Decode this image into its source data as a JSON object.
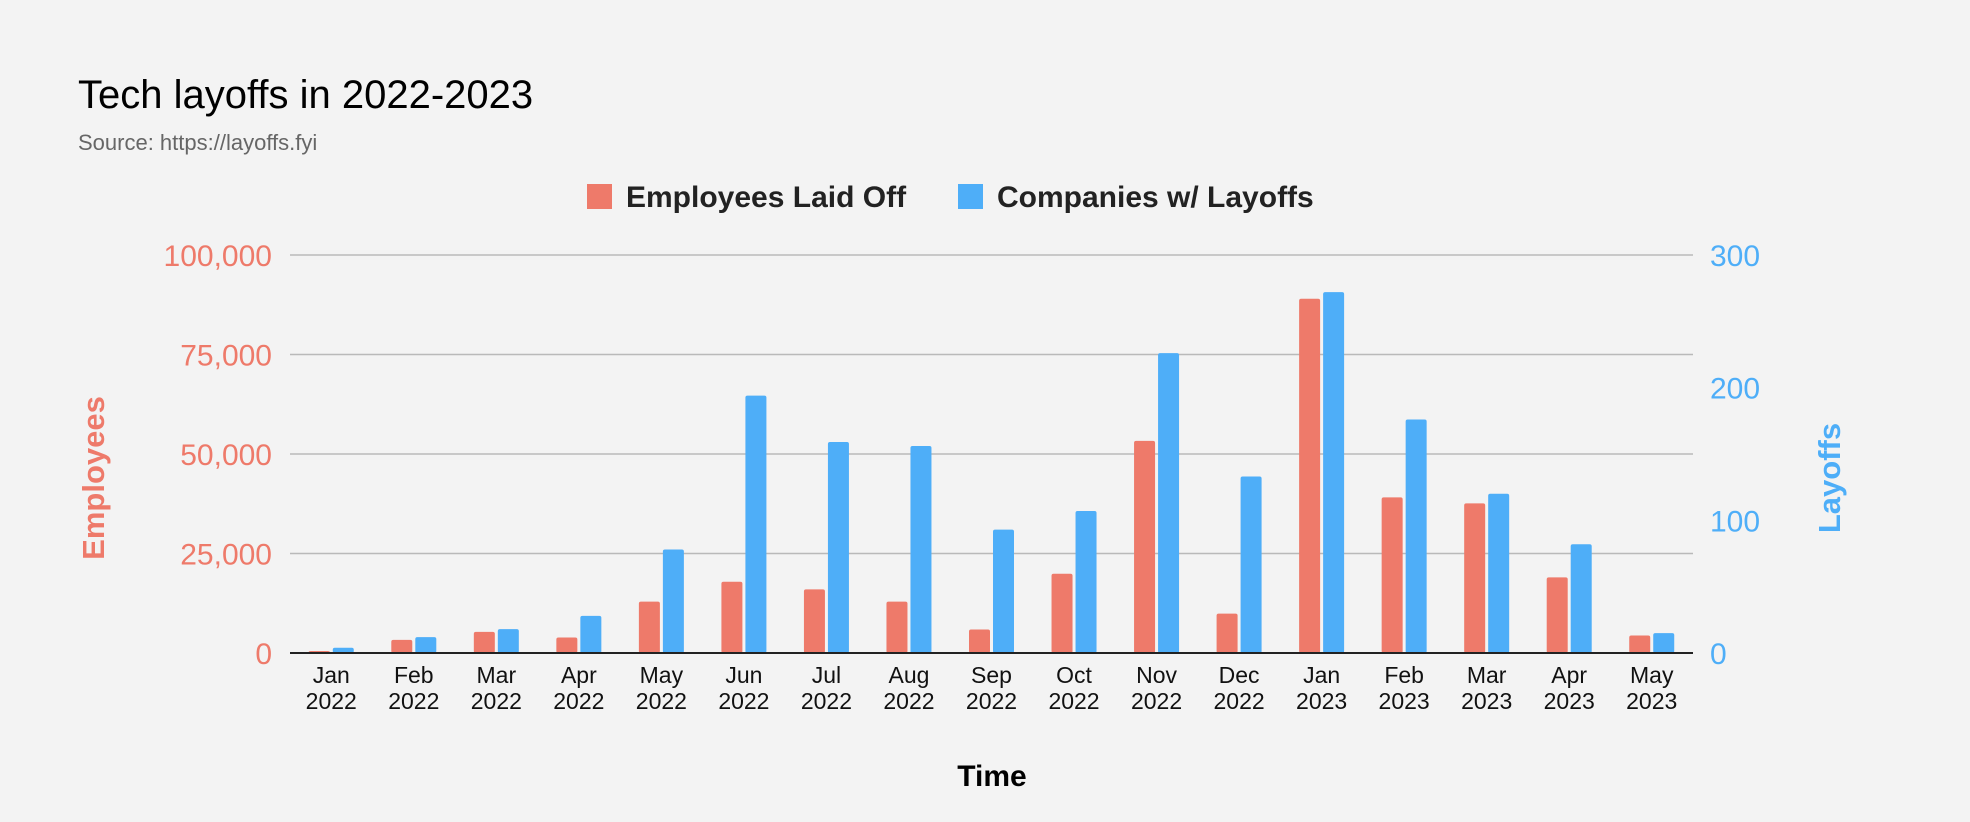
{
  "chart_data": {
    "type": "bar",
    "title": "Tech layoffs in 2022-2023",
    "subtitle": "Source: https://layoffs.fyi",
    "xlabel": "Time",
    "ylabel_left": "Employees",
    "ylabel_right": "Layoffs",
    "ylim_left": [
      0,
      100000
    ],
    "ylim_right": [
      0,
      300
    ],
    "yticks_left": [
      "0",
      "25,000",
      "50,000",
      "75,000",
      "100,000"
    ],
    "yticks_right": [
      "0",
      "100",
      "200",
      "300"
    ],
    "grid": true,
    "legend_position": "top-center",
    "categories": [
      [
        "Jan",
        "2022"
      ],
      [
        "Feb",
        "2022"
      ],
      [
        "Mar",
        "2022"
      ],
      [
        "Apr",
        "2022"
      ],
      [
        "May",
        "2022"
      ],
      [
        "Jun",
        "2022"
      ],
      [
        "Jul",
        "2022"
      ],
      [
        "Aug",
        "2022"
      ],
      [
        "Sep",
        "2022"
      ],
      [
        "Oct",
        "2022"
      ],
      [
        "Nov",
        "2022"
      ],
      [
        "Dec",
        "2022"
      ],
      [
        "Jan",
        "2023"
      ],
      [
        "Feb",
        "2023"
      ],
      [
        "Mar",
        "2023"
      ],
      [
        "Apr",
        "2023"
      ],
      [
        "May",
        "2023"
      ]
    ],
    "series": [
      {
        "name": "Employees Laid Off",
        "axis": "left",
        "color": "#ee7a6a",
        "values": [
          500,
          3300,
          5300,
          3900,
          12900,
          17900,
          16000,
          12900,
          5900,
          19900,
          53300,
          9900,
          89000,
          39100,
          37600,
          19000,
          4400
        ]
      },
      {
        "name": "Companies w/ Layoffs",
        "axis": "right",
        "color": "#4eaef8",
        "values": [
          4,
          12,
          18,
          28,
          78,
          194,
          159,
          156,
          93,
          107,
          226,
          133,
          272,
          176,
          120,
          82,
          15
        ]
      }
    ],
    "colors": {
      "left_axis": "#ee7a6a",
      "right_axis": "#4eaef8"
    }
  }
}
